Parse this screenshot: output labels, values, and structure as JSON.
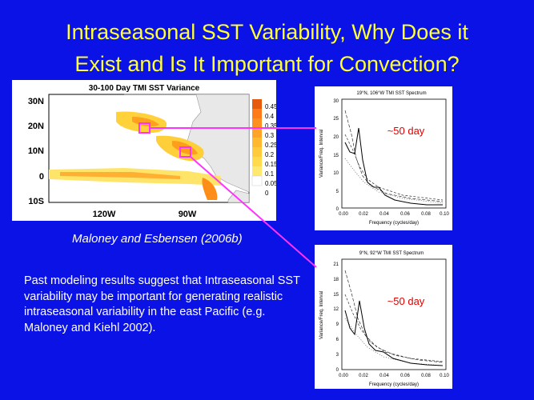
{
  "title": {
    "line1": "Intraseasonal SST Variability, Why Does it",
    "line2": "Exist and Is It Important for Convection?"
  },
  "map": {
    "title": "30-100 Day TMI SST Variance",
    "lat_labels": [
      "30N",
      "20N",
      "10N",
      "0",
      "10S"
    ],
    "lon_labels": [
      "120W",
      "90W"
    ],
    "colorbar_labels": [
      "0.45",
      "0.4",
      "0.35",
      "0.3",
      "0.25",
      "0.2",
      "0.15",
      "0.1",
      "0.05",
      "0"
    ]
  },
  "caption": "Maloney and Esbensen (2006b)",
  "body_text": "Past modeling results suggest that Intraseasonal SST variability may be important for generating realistic intraseasonal variability in the east Pacific (e.g. Maloney and Kiehl 2002).",
  "spectrum_top": {
    "title": "19°N, 106°W TMI SST Spectrum",
    "ylabel": "Variance/Freq. Interval",
    "xlabel": "Frequency (cycles/day)",
    "yticks": [
      "30",
      "25",
      "20",
      "15",
      "10",
      "5",
      "0"
    ],
    "xticks": [
      "0.00",
      "0.02",
      "0.04",
      "0.06",
      "0.08",
      "0.10"
    ],
    "annotation": "~50 day"
  },
  "spectrum_bottom": {
    "title": "9°N, 92°W TMI SST Spectrum",
    "ylabel": "Variance/Freq. Interval",
    "xlabel": "Frequency (cycles/day)",
    "yticks": [
      "21",
      "18",
      "15",
      "12",
      "9",
      "6",
      "3",
      "0"
    ],
    "xticks": [
      "0.00",
      "0.02",
      "0.04",
      "0.06",
      "0.08",
      "0.10"
    ],
    "annotation": "~50 day"
  },
  "colors": {
    "background": "#0a12e6",
    "title": "#ffff33",
    "highlight_box": "#ff33ff",
    "annotation": "#e00000"
  }
}
